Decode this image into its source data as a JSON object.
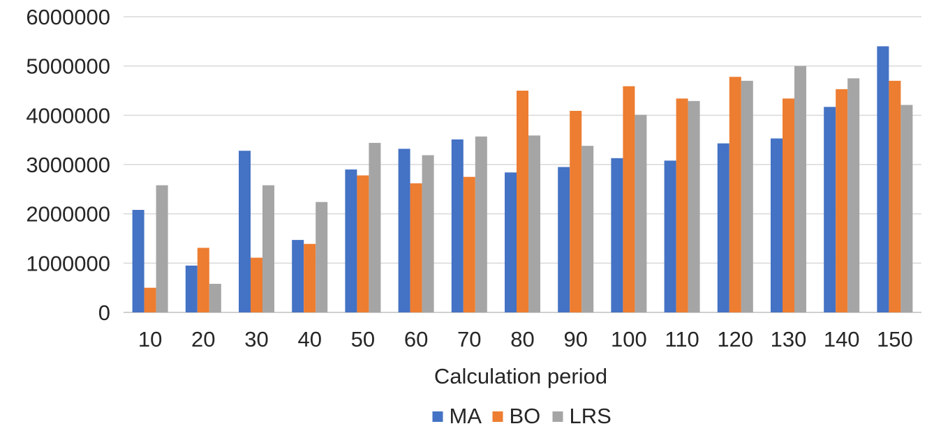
{
  "chart_data": {
    "type": "bar",
    "title": "",
    "xlabel": "Calculation period",
    "ylabel": "",
    "categories": [
      "10",
      "20",
      "30",
      "40",
      "50",
      "60",
      "70",
      "80",
      "90",
      "100",
      "110",
      "120",
      "130",
      "140",
      "150"
    ],
    "series": [
      {
        "name": "MA",
        "color": "#4472C4",
        "values": [
          2080000,
          950000,
          3280000,
          1470000,
          2900000,
          3320000,
          3510000,
          2840000,
          2950000,
          3130000,
          3080000,
          3430000,
          3530000,
          4170000,
          5400000
        ]
      },
      {
        "name": "BO",
        "color": "#ED7D31",
        "values": [
          500000,
          1310000,
          1110000,
          1390000,
          2780000,
          2620000,
          2750000,
          4500000,
          4090000,
          4590000,
          4340000,
          4780000,
          4340000,
          4530000,
          4700000
        ]
      },
      {
        "name": "LRS",
        "color": "#A5A5A5",
        "values": [
          2580000,
          580000,
          2580000,
          2240000,
          3440000,
          3190000,
          3570000,
          3590000,
          3380000,
          4010000,
          4290000,
          4700000,
          5000000,
          4750000,
          4210000
        ]
      }
    ],
    "ylim": [
      0,
      6000000
    ],
    "yticks": [
      "0",
      "1000000",
      "2000000",
      "3000000",
      "4000000",
      "5000000",
      "6000000"
    ],
    "grid": true,
    "legend_position": "bottom"
  }
}
